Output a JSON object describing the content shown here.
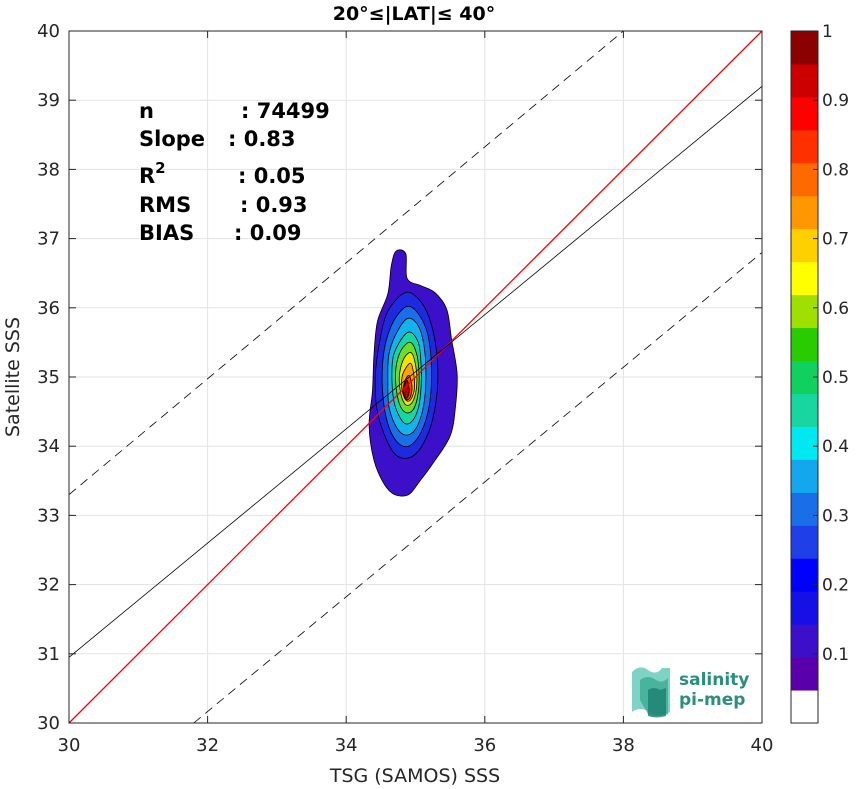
{
  "chart_data": {
    "type": "scatter",
    "title": "20°≤|LAT|≤ 40°",
    "xlabel": "TSG (SAMOS) SSS",
    "ylabel": "Satellite SSS",
    "xlim": [
      30,
      40
    ],
    "ylim": [
      30,
      40
    ],
    "xticks": [
      30,
      32,
      34,
      36,
      38,
      40
    ],
    "yticks": [
      30,
      31,
      32,
      33,
      34,
      35,
      36,
      37,
      38,
      39,
      40
    ],
    "grid": true,
    "stats": [
      {
        "label": "n",
        "value": ": 74499"
      },
      {
        "label": "Slope",
        "value": ": 0.83"
      },
      {
        "label": "R",
        "sup": "2",
        "value": ": 0.05"
      },
      {
        "label": "RMS",
        "value": ": 0.93"
      },
      {
        "label": "BIAS",
        "value": ": 0.09"
      }
    ],
    "reference_lines": [
      {
        "kind": "one-to-one",
        "color": "#ff0000",
        "style": "solid",
        "slope": 1,
        "intercept": 0
      },
      {
        "kind": "regression",
        "color": "#000000",
        "style": "solid",
        "points": [
          [
            30,
            30.95
          ],
          [
            40,
            39.2
          ]
        ]
      },
      {
        "kind": "upper-bound",
        "color": "#000000",
        "style": "dashed",
        "points": [
          [
            30,
            33.3
          ],
          [
            38,
            40.0
          ]
        ]
      },
      {
        "kind": "lower-bound",
        "color": "#000000",
        "style": "dashed",
        "points": [
          [
            31.8,
            30.0
          ],
          [
            40,
            36.8
          ]
        ]
      }
    ],
    "density_contours": {
      "center": [
        34.83,
        34.78
      ],
      "levels": [
        {
          "level": 0.05,
          "color": "#3b10c8",
          "points": [
            [
              34.72,
              36.82
            ],
            [
              34.86,
              36.78
            ],
            [
              34.88,
              36.42
            ],
            [
              35.08,
              36.32
            ],
            [
              35.28,
              36.22
            ],
            [
              35.45,
              35.98
            ],
            [
              35.52,
              35.55
            ],
            [
              35.6,
              35.05
            ],
            [
              35.58,
              34.6
            ],
            [
              35.5,
              34.15
            ],
            [
              35.25,
              33.75
            ],
            [
              35.05,
              33.48
            ],
            [
              34.9,
              33.3
            ],
            [
              34.7,
              33.3
            ],
            [
              34.55,
              33.45
            ],
            [
              34.4,
              33.8
            ],
            [
              34.33,
              34.3
            ],
            [
              34.38,
              34.8
            ],
            [
              34.4,
              35.3
            ],
            [
              34.45,
              35.8
            ],
            [
              34.6,
              36.2
            ],
            [
              34.65,
              36.6
            ]
          ]
        },
        {
          "level": 0.15,
          "color": "#1f2ae0",
          "points": [
            [
              34.85,
              36.22
            ],
            [
              35.05,
              36.12
            ],
            [
              35.2,
              35.85
            ],
            [
              35.3,
              35.4
            ],
            [
              35.32,
              34.9
            ],
            [
              35.25,
              34.4
            ],
            [
              35.12,
              34.05
            ],
            [
              34.95,
              33.85
            ],
            [
              34.75,
              33.85
            ],
            [
              34.6,
              34.05
            ],
            [
              34.45,
              34.5
            ],
            [
              34.42,
              35.0
            ],
            [
              34.48,
              35.5
            ],
            [
              34.6,
              35.95
            ]
          ]
        },
        {
          "level": 0.25,
          "color": "#1a6fe8",
          "points": [
            [
              34.88,
              36.02
            ],
            [
              35.05,
              35.9
            ],
            [
              35.18,
              35.6
            ],
            [
              35.23,
              35.1
            ],
            [
              35.2,
              34.6
            ],
            [
              35.08,
              34.2
            ],
            [
              34.9,
              34.0
            ],
            [
              34.72,
              34.08
            ],
            [
              34.58,
              34.4
            ],
            [
              34.52,
              34.9
            ],
            [
              34.55,
              35.4
            ],
            [
              34.68,
              35.8
            ]
          ]
        },
        {
          "level": 0.35,
          "color": "#13b4ec",
          "points": [
            [
              34.9,
              35.85
            ],
            [
              35.05,
              35.72
            ],
            [
              35.13,
              35.4
            ],
            [
              35.15,
              35.0
            ],
            [
              35.12,
              34.6
            ],
            [
              35.02,
              34.28
            ],
            [
              34.88,
              34.16
            ],
            [
              34.74,
              34.25
            ],
            [
              34.62,
              34.55
            ],
            [
              34.6,
              34.95
            ],
            [
              34.62,
              35.35
            ],
            [
              34.75,
              35.68
            ]
          ]
        },
        {
          "level": 0.45,
          "color": "#18d6a0",
          "points": [
            [
              34.92,
              35.65
            ],
            [
              35.04,
              35.5
            ],
            [
              35.08,
              35.2
            ],
            [
              35.08,
              34.85
            ],
            [
              35.04,
              34.55
            ],
            [
              34.94,
              34.35
            ],
            [
              34.82,
              34.35
            ],
            [
              34.7,
              34.6
            ],
            [
              34.66,
              34.95
            ],
            [
              34.68,
              35.3
            ],
            [
              34.8,
              35.55
            ]
          ]
        },
        {
          "level": 0.55,
          "color": "#6ddc2a",
          "points": [
            [
              34.93,
              35.5
            ],
            [
              35.02,
              35.32
            ],
            [
              35.05,
              35.05
            ],
            [
              35.04,
              34.78
            ],
            [
              34.98,
              34.55
            ],
            [
              34.88,
              34.48
            ],
            [
              34.78,
              34.58
            ],
            [
              34.72,
              34.85
            ],
            [
              34.72,
              35.15
            ],
            [
              34.8,
              35.4
            ]
          ]
        },
        {
          "level": 0.65,
          "color": "#f0e400",
          "points": [
            [
              34.94,
              35.35
            ],
            [
              35.0,
              35.18
            ],
            [
              35.02,
              34.95
            ],
            [
              34.99,
              34.72
            ],
            [
              34.92,
              34.6
            ],
            [
              34.84,
              34.62
            ],
            [
              34.78,
              34.8
            ],
            [
              34.77,
              35.05
            ],
            [
              34.84,
              35.28
            ]
          ]
        },
        {
          "level": 0.75,
          "color": "#f7a500",
          "points": [
            [
              34.93,
              35.2
            ],
            [
              34.98,
              35.0
            ],
            [
              34.98,
              34.8
            ],
            [
              34.92,
              34.66
            ],
            [
              34.85,
              34.68
            ],
            [
              34.8,
              34.85
            ],
            [
              34.82,
              35.05
            ]
          ]
        },
        {
          "level": 0.85,
          "color": "#f24a00",
          "points": [
            [
              34.91,
              35.02
            ],
            [
              34.95,
              34.85
            ],
            [
              34.92,
              34.7
            ],
            [
              34.86,
              34.68
            ],
            [
              34.82,
              34.8
            ],
            [
              34.85,
              34.95
            ]
          ]
        },
        {
          "level": 0.95,
          "color": "#b40000",
          "points": [
            [
              34.88,
              34.95
            ],
            [
              34.91,
              34.8
            ],
            [
              34.88,
              34.7
            ],
            [
              34.84,
              34.72
            ],
            [
              34.83,
              34.85
            ]
          ]
        }
      ]
    },
    "colorbar": {
      "range": [
        0,
        1
      ],
      "ticks": [
        0.1,
        0.2,
        0.3,
        0.4,
        0.5,
        0.6,
        0.7,
        0.8,
        0.9,
        1
      ],
      "tick_labels": [
        "0.1",
        "0.2",
        "0.3",
        "0.4",
        "0.5",
        "0.6",
        "0.7",
        "0.8",
        "0.9",
        "1"
      ],
      "colors": [
        "#ffffff",
        "#5a00aa",
        "#3b10c8",
        "#1510e6",
        "#0000ff",
        "#1f3fe8",
        "#1a6fe8",
        "#13a8ee",
        "#00e8f0",
        "#18d6a0",
        "#10d060",
        "#28cc00",
        "#a0e000",
        "#ffff00",
        "#ffd000",
        "#ff9800",
        "#ff6a00",
        "#ff3000",
        "#ff0000",
        "#cc0000",
        "#8b0000"
      ]
    }
  },
  "logo": {
    "line1": "salinity",
    "line2": "pi-mep"
  }
}
